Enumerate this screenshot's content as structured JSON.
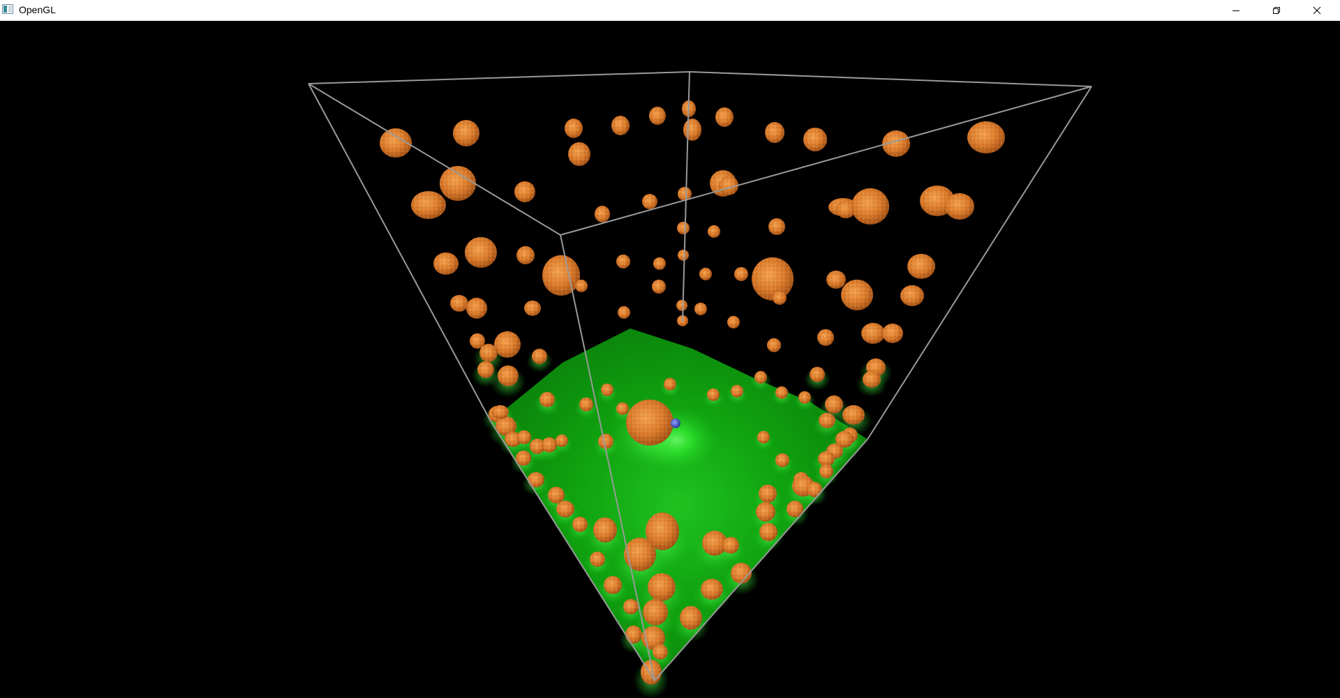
{
  "window": {
    "title": "OpenGL",
    "icons": {
      "app": "opengl-app-icon",
      "minimize": "minimize-icon",
      "maximize": "restore-icon",
      "close": "close-icon"
    }
  },
  "scene": {
    "background": "#000000",
    "wireframe_color": "#9a9a9a",
    "floor_color": "#0a9a0a",
    "floor_glow_color": "#35ff35",
    "sphere_color": "#d9792a",
    "marker_color": "#3a4fb0"
  }
}
